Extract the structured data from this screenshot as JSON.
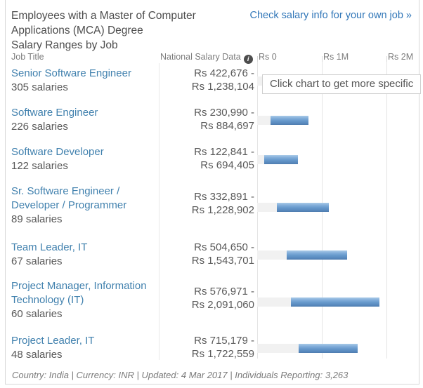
{
  "header": {
    "title": "Employees with a Master of Computer Applications (MCA) Degree",
    "subtitle": "Salary Ranges by Job",
    "link": "Check salary info for your own job »"
  },
  "columns": {
    "job_title": "Job Title",
    "national_salary_data": "National Salary Data",
    "info_icon": "i"
  },
  "tooltip": "Click chart to get more specific",
  "chart_data": {
    "type": "bar",
    "orientation": "horizontal",
    "currency": "INR",
    "axis_ticks": [
      "Rs 0",
      "Rs 1M",
      "Rs 2M"
    ],
    "axis_tick_values": [
      0,
      1000000,
      2000000
    ],
    "rows": [
      {
        "job": "Senior Software Engineer",
        "salaries": "305 salaries",
        "min_label": "Rs 422,676 -",
        "max_label": "Rs 1,238,104",
        "min": 422676,
        "max": 1238104
      },
      {
        "job": "Software Engineer",
        "salaries": "226 salaries",
        "min_label": "Rs 230,990 -",
        "max_label": "Rs 884,697",
        "min": 230990,
        "max": 884697
      },
      {
        "job": "Software Developer",
        "salaries": "122 salaries",
        "min_label": "Rs 122,841 -",
        "max_label": "Rs 694,405",
        "min": 122841,
        "max": 694405
      },
      {
        "job": "Sr. Software Engineer / Developer / Programmer",
        "salaries": "89 salaries",
        "min_label": "Rs 332,891 -",
        "max_label": "Rs 1,228,902",
        "min": 332891,
        "max": 1228902
      },
      {
        "job": "Team Leader, IT",
        "salaries": "67 salaries",
        "min_label": "Rs 504,650 -",
        "max_label": "Rs 1,543,701",
        "min": 504650,
        "max": 1543701
      },
      {
        "job": "Project Manager, Information Technology (IT)",
        "salaries": "60 salaries",
        "min_label": "Rs 576,971 -",
        "max_label": "Rs 2,091,060",
        "min": 576971,
        "max": 2091060
      },
      {
        "job": "Project Leader, IT",
        "salaries": "48 salaries",
        "min_label": "Rs 715,179 -",
        "max_label": "Rs 1,722,559",
        "min": 715179,
        "max": 1722559
      }
    ]
  },
  "footer": "Country: India | Currency: INR | Updated: 4 Mar 2017 | Individuals Reporting: 3,263",
  "colors": {
    "link_blue": "#3076b8",
    "job_link_blue": "#4181ae",
    "bar_blue": "#6699cc",
    "bar_track_gray": "#f1f1f1",
    "gridline": "#e4e4e4",
    "text_gray": "#595959"
  }
}
